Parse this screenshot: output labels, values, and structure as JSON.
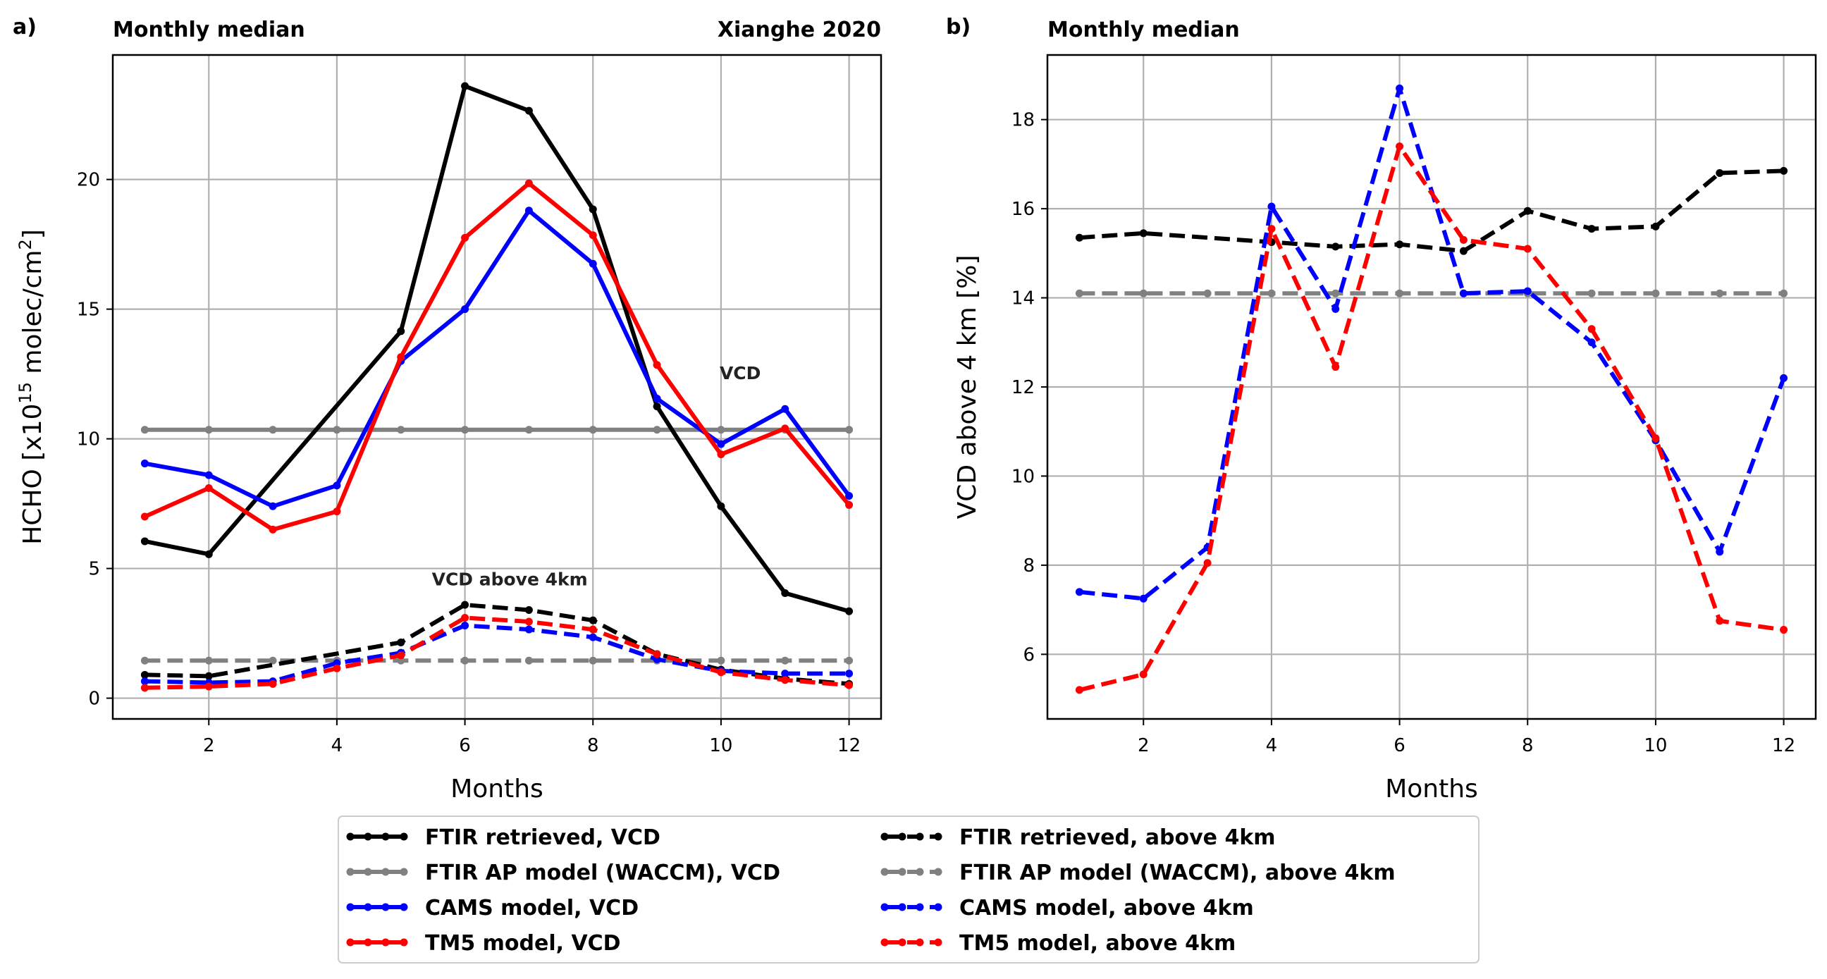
{
  "chart_data": [
    {
      "panel_label": "a)",
      "type": "line",
      "title_left": "Monthly median",
      "title_right": "Xianghe 2020",
      "xlabel": "Months",
      "ylabel_main": "HCHO [x10",
      "ylabel_sup1": "15",
      "ylabel_mid": " molec/cm",
      "ylabel_sup2": "2",
      "ylabel_end": "]",
      "xlim": [
        0.5,
        12.5
      ],
      "ylim": [
        -0.8,
        24.8
      ],
      "xticks": [
        2,
        4,
        6,
        8,
        10,
        12
      ],
      "yticks": [
        0,
        5,
        10,
        15,
        20
      ],
      "grid": true,
      "annotations": [
        {
          "text": "VCD",
          "x": 10.3,
          "y": 12.3
        },
        {
          "text": "VCD above 4km",
          "x": 6.7,
          "y": 4.35
        }
      ],
      "x": [
        1,
        2,
        3,
        4,
        5,
        6,
        7,
        8,
        9,
        10,
        11,
        12
      ],
      "series": [
        {
          "name": "FTIR AP model (WACCM), VCD",
          "color": "#808080",
          "dash": "solid",
          "values": [
            10.35,
            10.35,
            10.35,
            10.35,
            10.35,
            10.35,
            10.35,
            10.35,
            10.35,
            10.35,
            10.35,
            10.35
          ]
        },
        {
          "name": "FTIR retrieved, VCD",
          "color": "#000000",
          "dash": "solid",
          "values": [
            6.05,
            5.55,
            null,
            null,
            14.15,
            23.6,
            22.65,
            18.85,
            11.25,
            7.4,
            4.05,
            3.35
          ]
        },
        {
          "name": "CAMS model, VCD",
          "color": "#0000ff",
          "dash": "solid",
          "values": [
            9.05,
            8.6,
            7.4,
            8.2,
            13.0,
            15.0,
            18.8,
            16.75,
            11.55,
            9.8,
            11.15,
            7.8
          ]
        },
        {
          "name": "TM5 model, VCD",
          "color": "#ff0000",
          "dash": "solid",
          "values": [
            7.0,
            8.1,
            6.5,
            7.2,
            13.15,
            17.75,
            19.85,
            17.85,
            12.85,
            9.4,
            10.4,
            7.45
          ]
        },
        {
          "name": "FTIR AP model (WACCM), above 4km",
          "color": "#808080",
          "dash": "dashed",
          "values": [
            1.45,
            1.45,
            1.45,
            1.45,
            1.45,
            1.45,
            1.45,
            1.45,
            1.45,
            1.45,
            1.45,
            1.45
          ]
        },
        {
          "name": "FTIR retrieved, above 4km",
          "color": "#000000",
          "dash": "dashed",
          "values": [
            0.9,
            0.85,
            null,
            null,
            2.15,
            3.6,
            3.4,
            3.0,
            1.7,
            1.1,
            0.75,
            0.55
          ]
        },
        {
          "name": "CAMS model, above 4km",
          "color": "#0000ff",
          "dash": "dashed",
          "values": [
            0.65,
            0.6,
            0.65,
            1.35,
            1.75,
            2.8,
            2.65,
            2.35,
            1.5,
            1.05,
            0.95,
            0.95
          ]
        },
        {
          "name": "TM5 model, above 4km",
          "color": "#ff0000",
          "dash": "dashed",
          "values": [
            0.4,
            0.45,
            0.55,
            1.15,
            1.65,
            3.1,
            2.95,
            2.65,
            1.7,
            1.0,
            0.7,
            0.5
          ]
        }
      ]
    },
    {
      "panel_label": "b)",
      "type": "line",
      "title_left": "Monthly median",
      "xlabel": "Months",
      "ylabel": "VCD above 4 km [%]",
      "xlim": [
        0.5,
        12.5
      ],
      "ylim": [
        4.55,
        19.45
      ],
      "xticks": [
        2,
        4,
        6,
        8,
        10,
        12
      ],
      "yticks": [
        6,
        8,
        10,
        12,
        14,
        16,
        18
      ],
      "grid": true,
      "x": [
        1,
        2,
        3,
        4,
        5,
        6,
        7,
        8,
        9,
        10,
        11,
        12
      ],
      "series": [
        {
          "name": "FTIR AP model (WACCM), above 4km",
          "color": "#808080",
          "dash": "dashed",
          "values": [
            14.1,
            14.1,
            14.1,
            14.1,
            14.1,
            14.1,
            14.1,
            14.1,
            14.1,
            14.1,
            14.1,
            14.1
          ]
        },
        {
          "name": "FTIR retrieved, above 4km",
          "color": "#000000",
          "dash": "dashed",
          "values": [
            15.35,
            15.45,
            null,
            15.25,
            15.15,
            15.2,
            15.05,
            15.95,
            15.55,
            15.6,
            16.8,
            16.85
          ]
        },
        {
          "name": "CAMS model, above 4km",
          "color": "#0000ff",
          "dash": "dashed",
          "values": [
            7.4,
            7.25,
            8.4,
            16.05,
            13.75,
            18.7,
            14.1,
            14.15,
            13.0,
            10.8,
            8.3,
            12.2
          ]
        },
        {
          "name": "TM5 model, above 4km",
          "color": "#ff0000",
          "dash": "dashed",
          "values": [
            5.2,
            5.55,
            8.05,
            15.55,
            12.45,
            17.4,
            15.3,
            15.1,
            13.3,
            10.85,
            6.75,
            6.55
          ]
        }
      ]
    }
  ],
  "legend": {
    "placement": "bottom-center",
    "entries": [
      {
        "label": "FTIR retrieved, VCD",
        "color": "#000000",
        "dash": "solid"
      },
      {
        "label": "FTIR AP model (WACCM), VCD",
        "color": "#808080",
        "dash": "solid"
      },
      {
        "label": "CAMS model, VCD",
        "color": "#0000ff",
        "dash": "solid"
      },
      {
        "label": "TM5 model, VCD",
        "color": "#ff0000",
        "dash": "solid"
      },
      {
        "label": "FTIR retrieved, above 4km",
        "color": "#000000",
        "dash": "dashed"
      },
      {
        "label": "FTIR AP model (WACCM), above 4km",
        "color": "#808080",
        "dash": "dashed"
      },
      {
        "label": "CAMS model, above 4km",
        "color": "#0000ff",
        "dash": "dashed"
      },
      {
        "label": "TM5 model, above 4km",
        "color": "#ff0000",
        "dash": "dashed"
      }
    ]
  }
}
